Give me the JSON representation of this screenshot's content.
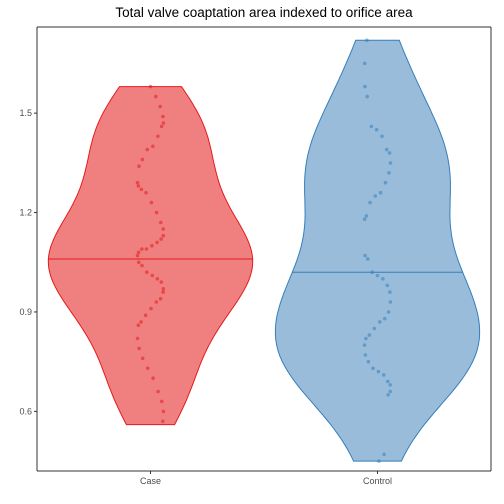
{
  "chart_data": {
    "type": "violin",
    "title": "Total valve coaptation area indexed to orifice area",
    "xlabel": "",
    "ylabel": "",
    "ylim": [
      0.42,
      1.76
    ],
    "yticks": [
      0.6,
      0.9,
      1.2,
      1.5
    ],
    "ytick_labels": [
      "0.6",
      "0.9",
      "1.2",
      "1.5"
    ],
    "grid": false,
    "legend": "none",
    "categories": [
      "Case",
      "Control"
    ],
    "series": [
      {
        "category": "Case",
        "fill": "#f08080",
        "stroke": "#e41a1c",
        "point_color": "#e41a1c",
        "median": 1.06,
        "min": 0.56,
        "max": 1.58,
        "points": [
          1.58,
          1.55,
          1.52,
          1.49,
          1.47,
          1.46,
          1.43,
          1.4,
          1.39,
          1.36,
          1.34,
          1.29,
          1.28,
          1.27,
          1.26,
          1.23,
          1.2,
          1.17,
          1.15,
          1.13,
          1.12,
          1.11,
          1.1,
          1.09,
          1.09,
          1.08,
          1.07,
          1.05,
          1.04,
          1.02,
          1.01,
          1.0,
          0.99,
          0.97,
          0.96,
          0.94,
          0.93,
          0.91,
          0.89,
          0.87,
          0.86,
          0.82,
          0.79,
          0.76,
          0.73,
          0.7,
          0.66,
          0.63,
          0.6,
          0.57
        ]
      },
      {
        "category": "Control",
        "fill": "#99bcdb",
        "stroke": "#377eb8",
        "point_color": "#377eb8",
        "median": 1.02,
        "min": 0.45,
        "max": 1.72,
        "points": [
          1.72,
          1.65,
          1.58,
          1.55,
          1.46,
          1.45,
          1.43,
          1.39,
          1.38,
          1.35,
          1.32,
          1.29,
          1.26,
          1.25,
          1.23,
          1.19,
          1.18,
          1.07,
          1.06,
          1.02,
          1.01,
          1.0,
          0.98,
          0.96,
          0.93,
          0.9,
          0.88,
          0.87,
          0.85,
          0.83,
          0.82,
          0.8,
          0.77,
          0.75,
          0.73,
          0.72,
          0.71,
          0.69,
          0.68,
          0.66,
          0.65,
          0.47,
          0.45
        ]
      }
    ]
  }
}
